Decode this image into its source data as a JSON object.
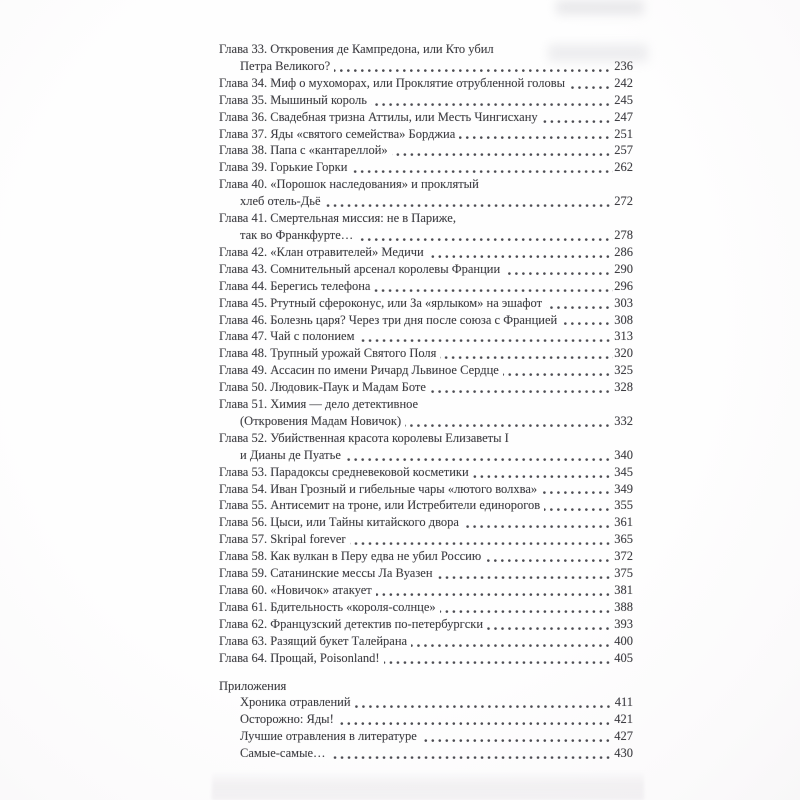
{
  "page": {
    "type": "book-table-of-contents-photo",
    "language": "ru",
    "paper_color": "#fcfbfc",
    "ink_color": "#3e3e43"
  },
  "toc": {
    "lines": [
      {
        "text": "Глава 33. Откровения де Кампредона, или Кто убил",
        "indent": 0,
        "page": null
      },
      {
        "text": "Петра Великого?",
        "indent": 1,
        "page": "236"
      },
      {
        "text": "Глава 34. Миф о мухоморах, или Проклятие отрубленной головы",
        "indent": 0,
        "page": "242"
      },
      {
        "text": "Глава 35. Мышиный король",
        "indent": 0,
        "page": "245"
      },
      {
        "text": "Глава 36. Свадебная тризна Аттилы, или Месть Чингисхану",
        "indent": 0,
        "page": "247"
      },
      {
        "text": "Глава 37. Яды «святого семейства» Борджиа",
        "indent": 0,
        "page": "251"
      },
      {
        "text": "Глава 38. Папа с «кантареллой»",
        "indent": 0,
        "page": "257"
      },
      {
        "text": "Глава 39. Горькие Горки",
        "indent": 0,
        "page": "262"
      },
      {
        "text": "Глава 40. «Порошок наследования» и проклятый",
        "indent": 0,
        "page": null
      },
      {
        "text": "хлеб отель-Дьё",
        "indent": 1,
        "page": "272"
      },
      {
        "text": "Глава 41. Смертельная миссия: не в Париже,",
        "indent": 0,
        "page": null
      },
      {
        "text": "так во Франкфурте…",
        "indent": 1,
        "page": "278"
      },
      {
        "text": "Глава 42. «Клан отравителей» Медичи",
        "indent": 0,
        "page": "286"
      },
      {
        "text": "Глава 43. Сомнительный арсенал королевы Франции",
        "indent": 0,
        "page": "290"
      },
      {
        "text": "Глава 44. Берегись телефона",
        "indent": 0,
        "page": "296"
      },
      {
        "text": "Глава 45. Ртутный сфероконус, или За «ярлыком» на эшафот",
        "indent": 0,
        "page": "303"
      },
      {
        "text": "Глава 46. Болезнь царя? Через три дня после союза с Францией",
        "indent": 0,
        "page": "308"
      },
      {
        "text": "Глава 47. Чай с полонием",
        "indent": 0,
        "page": "313"
      },
      {
        "text": "Глава 48. Трупный урожай Святого Поля",
        "indent": 0,
        "page": "320"
      },
      {
        "text": "Глава 49. Ассасин по имени Ричард Львиное Сердце",
        "indent": 0,
        "page": "325"
      },
      {
        "text": "Глава 50. Людовик-Паук и Мадам Боте",
        "indent": 0,
        "page": "328"
      },
      {
        "text": "Глава 51. Химия — дело детективное",
        "indent": 0,
        "page": null
      },
      {
        "text": "(Откровения Мадам Новичок)",
        "indent": 1,
        "page": "332"
      },
      {
        "text": "Глава 52. Убийственная красота королевы Елизаветы I",
        "indent": 0,
        "page": null
      },
      {
        "text": "и Дианы де Пуатье",
        "indent": 1,
        "page": "340"
      },
      {
        "text": "Глава 53. Парадоксы средневековой косметики",
        "indent": 0,
        "page": "345"
      },
      {
        "text": "Глава 54. Иван Грозный и гибельные чары «лютого волхва»",
        "indent": 0,
        "page": "349"
      },
      {
        "text": "Глава 55. Антисемит на троне, или Истребители единорогов",
        "indent": 0,
        "page": "355"
      },
      {
        "text": "Глава 56. Цыси, или Тайны китайского двора",
        "indent": 0,
        "page": "361"
      },
      {
        "text": "Глава 57. Skripal forever",
        "indent": 0,
        "page": "365"
      },
      {
        "text": "Глава 58. Как вулкан в Перу едва не убил Россию",
        "indent": 0,
        "page": "372"
      },
      {
        "text": "Глава 59. Сатанинские мессы Ла Вуазен",
        "indent": 0,
        "page": "375"
      },
      {
        "text": "Глава 60. «Новичок» атакует",
        "indent": 0,
        "page": "381"
      },
      {
        "text": "Глава 61. Бдительность «короля-солнце»",
        "indent": 0,
        "page": "388"
      },
      {
        "text": "Глава 62. Французский детектив по-петербургски",
        "indent": 0,
        "page": "393"
      },
      {
        "text": "Глава 63. Разящий букет Талейрана",
        "indent": 0,
        "page": "400"
      },
      {
        "text": "Глава 64. Прощай, Poisonland!",
        "indent": 0,
        "page": "405"
      },
      {
        "text": "Приложения",
        "indent": 0,
        "page": null,
        "gap": true,
        "header": true
      },
      {
        "text": "Хроника отравлений",
        "indent": 1,
        "page": "411"
      },
      {
        "text": "Осторожно: Яды!",
        "indent": 1,
        "page": "421"
      },
      {
        "text": "Лучшие отравления в литературе",
        "indent": 1,
        "page": "427"
      },
      {
        "text": "Самые-самые…",
        "indent": 1,
        "page": "430"
      }
    ]
  }
}
